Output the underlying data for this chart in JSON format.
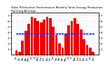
{
  "title": "Solar PV/Inverter Performance Monthly Solar Energy Production Running Average",
  "bar_values": [
    0.8,
    0.5,
    2.5,
    4.2,
    5.5,
    6.8,
    6.5,
    6.0,
    5.8,
    6.2,
    6.8,
    6.5,
    5.0,
    3.5,
    2.0,
    1.2,
    3.8,
    5.2,
    6.0,
    6.5,
    5.5,
    4.5,
    2.8,
    1.8,
    1.2,
    0.5
  ],
  "avg_values": [
    3.8,
    3.8,
    3.8,
    3.8,
    3.8,
    3.8,
    3.8,
    3.8,
    3.8,
    3.8,
    3.8,
    3.8,
    3.8,
    3.8,
    3.8,
    3.8,
    3.8,
    3.8,
    3.8,
    3.8,
    3.8,
    3.8,
    3.8,
    3.8,
    3.8,
    3.8
  ],
  "bar_color": "#ee0000",
  "avg_color": "#1144ff",
  "bg_color": "#ffffff",
  "plot_bg": "#ffffff",
  "grid_color": "#bbbbbb",
  "ylim": [
    0,
    7.5
  ],
  "ytick_vals": [
    1,
    2,
    3,
    4,
    5,
    6,
    7
  ],
  "figsize": [
    1.6,
    1.0
  ],
  "dpi": 100
}
